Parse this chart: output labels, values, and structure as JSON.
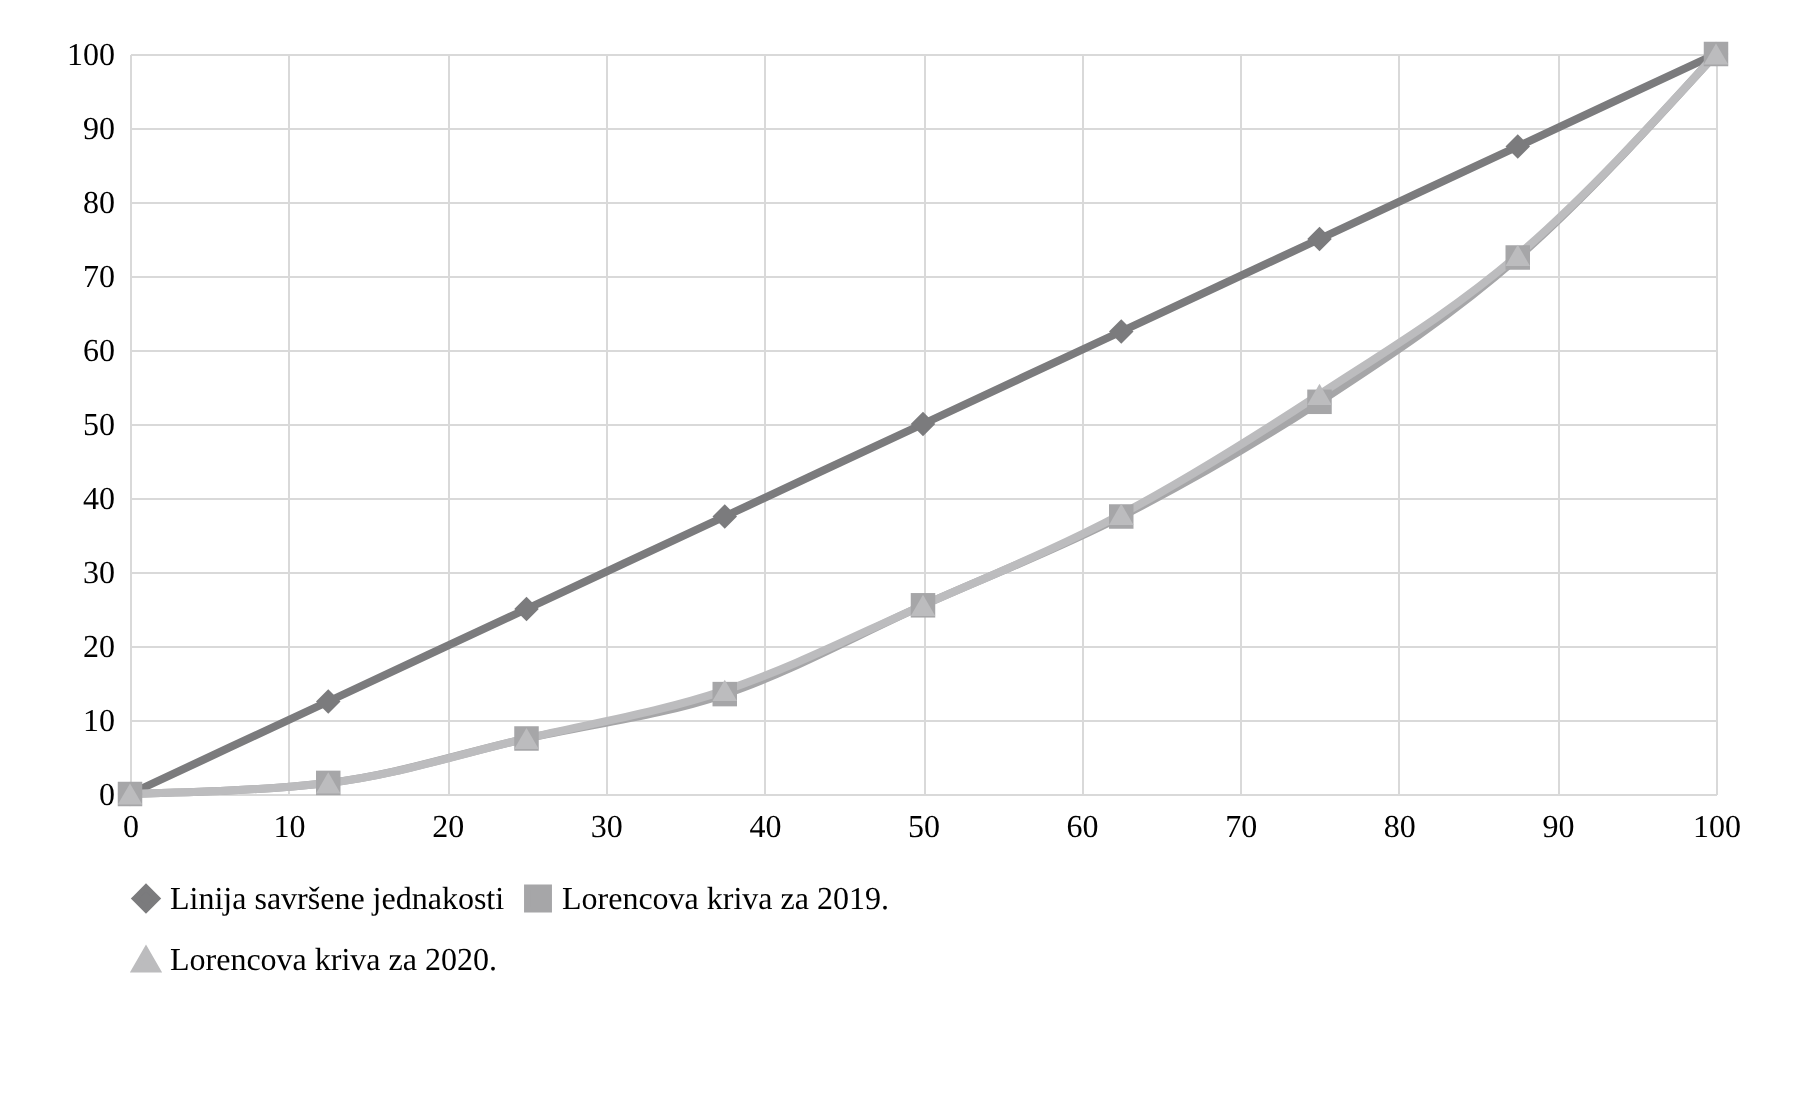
{
  "chart_data": {
    "type": "line",
    "x": [
      0,
      12.5,
      25,
      37.5,
      50,
      62.5,
      75,
      87.5,
      100
    ],
    "series": [
      {
        "name": "Linija savršene jednakosti",
        "color": "#7b7b7d",
        "marker": "diamond",
        "values": [
          0,
          12.5,
          25,
          37.5,
          50,
          62.5,
          75,
          87.5,
          100
        ]
      },
      {
        "name": "Lorencova kriva za 2019.",
        "color": "#a6a6a8",
        "marker": "square",
        "values": [
          0,
          1.5,
          7.5,
          13.5,
          25.5,
          37.5,
          53,
          72.5,
          100
        ]
      },
      {
        "name": "Lorencova kriva za 2020.",
        "color": "#bcbcbe",
        "marker": "triangle",
        "values": [
          0,
          1.5,
          7.5,
          14,
          25.5,
          37.8,
          54,
          72.8,
          100
        ]
      }
    ],
    "xlim": [
      0,
      100
    ],
    "xticks": [
      0,
      10,
      20,
      30,
      40,
      50,
      60,
      70,
      80,
      90,
      100
    ],
    "ylim": [
      0,
      100
    ],
    "yticks": [
      0,
      10,
      20,
      30,
      40,
      50,
      60,
      70,
      80,
      90,
      100
    ],
    "grid": true,
    "legend": "bottom",
    "line_style": "solid"
  }
}
